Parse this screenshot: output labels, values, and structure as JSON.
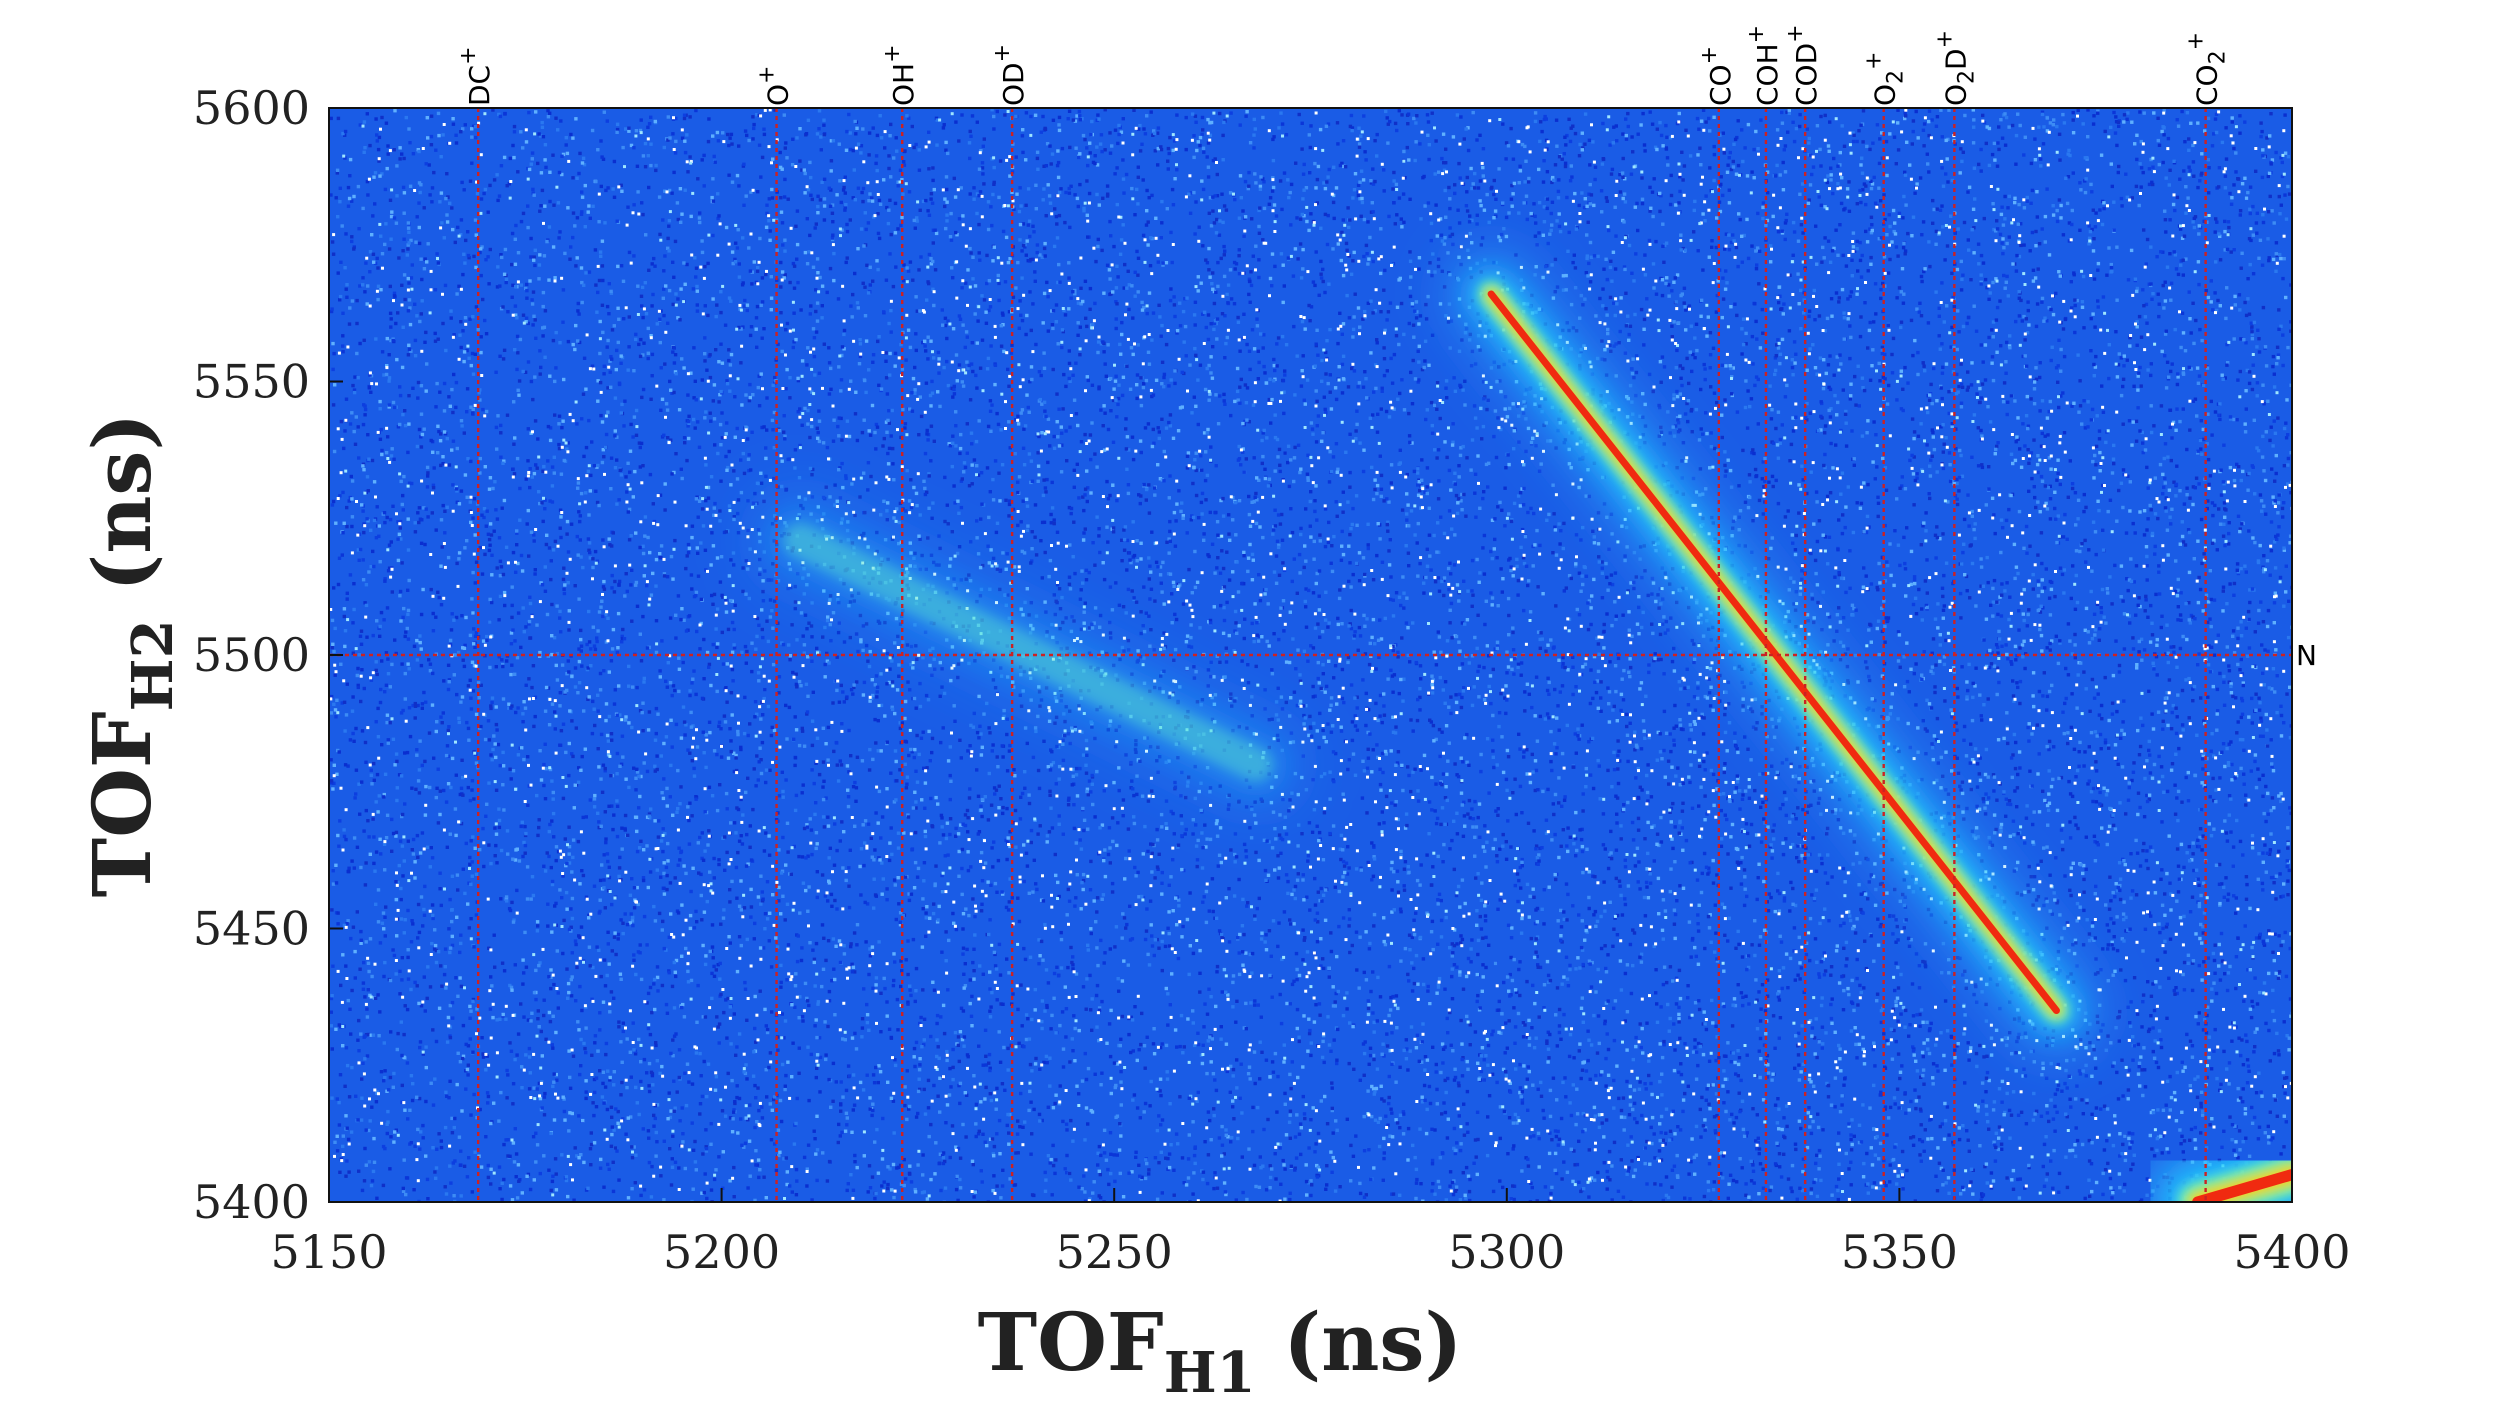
{
  "chart_data": {
    "type": "heatmap",
    "xlabel": {
      "main": "TOF",
      "sub": "H1",
      "unit": " (ns)"
    },
    "ylabel": {
      "main": "TOF",
      "sub": "H2",
      "unit": " (ns)"
    },
    "xlim": [
      5150,
      5400
    ],
    "ylim": [
      5400,
      5600
    ],
    "x_ticks": [
      5150,
      5200,
      5250,
      5300,
      5350,
      5400
    ],
    "y_ticks": [
      5400,
      5450,
      5500,
      5550,
      5600
    ],
    "grid": false,
    "colormap": "jet",
    "background_color": "#1a5ce6",
    "reference_line_color": "#cc2222",
    "vertical_markers": [
      {
        "x": 5169,
        "label": "DC",
        "charge": "+"
      },
      {
        "x": 5207,
        "label": "O",
        "charge": "+"
      },
      {
        "x": 5223,
        "label": "OH",
        "charge": "+"
      },
      {
        "x": 5237,
        "label": "OD",
        "charge": "+"
      },
      {
        "x": 5327,
        "label": "CO",
        "charge": "+"
      },
      {
        "x": 5333,
        "label": "COH",
        "charge": "+"
      },
      {
        "x": 5338,
        "label": "COD",
        "charge": "+"
      },
      {
        "x": 5348,
        "label": "O",
        "sub": "2",
        "charge": "+"
      },
      {
        "x": 5357,
        "label": "O",
        "sub": "2",
        "tail": "D",
        "charge": "+"
      },
      {
        "x": 5389,
        "label": "CO",
        "sub": "2",
        "charge": "+"
      }
    ],
    "horizontal_markers": [
      {
        "y": 5500,
        "label": "N"
      }
    ],
    "features": [
      {
        "name": "faint-diagonal-band",
        "from": [
          5210,
          5521
        ],
        "to": [
          5268,
          5480
        ],
        "intensity": 0.32,
        "width": 1.4
      },
      {
        "name": "strong-diagonal-band",
        "from": [
          5298,
          5566
        ],
        "to": [
          5370,
          5435
        ],
        "intensity": 1.0,
        "width": 1.0
      },
      {
        "name": "corner-band",
        "from": [
          5388,
          5400
        ],
        "to": [
          5400,
          5405
        ],
        "intensity": 0.95,
        "width": 1.6
      }
    ]
  }
}
